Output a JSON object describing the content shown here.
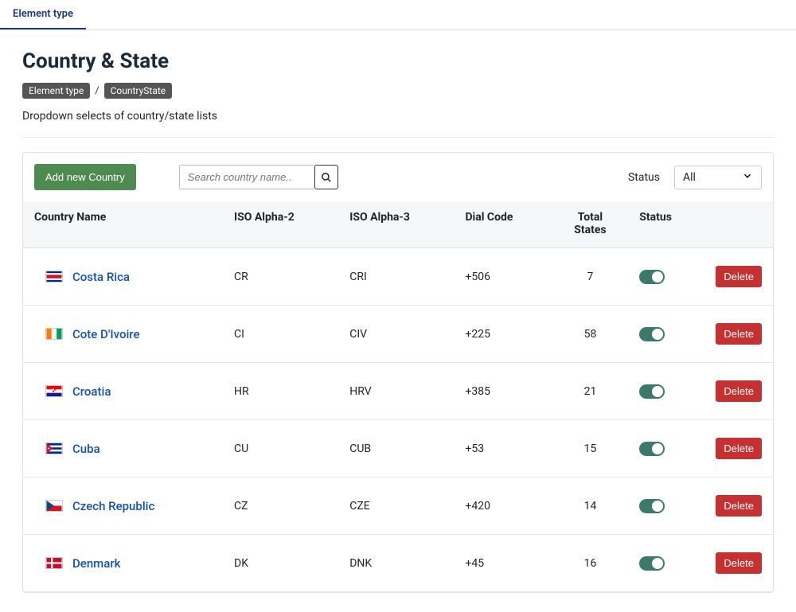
{
  "tabs": {
    "active": "Element type"
  },
  "page": {
    "title": "Country & State",
    "description": "Dropdown selects of country/state lists"
  },
  "breadcrumb": {
    "root": "Element type",
    "current": "CountryState"
  },
  "toolbar": {
    "add_button": "Add new Country",
    "search_placeholder": "Search country name..",
    "status_label": "Status",
    "status_selected": "All"
  },
  "table": {
    "columns": {
      "name": "Country Name",
      "iso2": "ISO Alpha-2",
      "iso3": "ISO Alpha-3",
      "dial": "Dial Code",
      "total_states": "Total States",
      "status": "Status"
    },
    "delete_label": "Delete",
    "rows": [
      {
        "name": "Costa Rica",
        "iso2": "CR",
        "iso3": "CRI",
        "dial": "+506",
        "total_states": "7",
        "status_on": true,
        "flag": "cr"
      },
      {
        "name": "Cote D'Ivoire",
        "iso2": "CI",
        "iso3": "CIV",
        "dial": "+225",
        "total_states": "58",
        "status_on": true,
        "flag": "ci"
      },
      {
        "name": "Croatia",
        "iso2": "HR",
        "iso3": "HRV",
        "dial": "+385",
        "total_states": "21",
        "status_on": true,
        "flag": "hr"
      },
      {
        "name": "Cuba",
        "iso2": "CU",
        "iso3": "CUB",
        "dial": "+53",
        "total_states": "15",
        "status_on": true,
        "flag": "cu"
      },
      {
        "name": "Czech Republic",
        "iso2": "CZ",
        "iso3": "CZE",
        "dial": "+420",
        "total_states": "14",
        "status_on": true,
        "flag": "cz"
      },
      {
        "name": "Denmark",
        "iso2": "DK",
        "iso3": "DNK",
        "dial": "+45",
        "total_states": "16",
        "status_on": true,
        "flag": "dk"
      }
    ],
    "column_widths": {
      "name": "26%",
      "iso2": "14%",
      "iso3": "16%",
      "dial": "16%",
      "total_states": "10%",
      "status": "10%",
      "actions": "8%"
    }
  },
  "styling": {
    "accent_link_color": "#1451b4",
    "add_button_bg": "#4f8a51",
    "delete_button_bg": "#c53030",
    "toggle_on_bg": "#3b7a6a",
    "header_bg": "#f6f7f9",
    "border_color": "#e0e0e0",
    "tab_active_color": "#1a3a7a",
    "breadcrumb_pill_bg": "#555555",
    "title_color": "#1a2b3a",
    "background_color": "#ffffff",
    "font_family": "system-ui"
  },
  "flag_svgs": {
    "cr": "<rect width='22' height='15' fill='#002b7f'/><rect y='2.5' width='22' height='10' fill='#fff'/><rect y='5' width='22' height='5' fill='#ce1126'/>",
    "ci": "<rect width='7.33' height='15' x='0'  fill='#f77f00'/><rect width='7.33' height='15' x='7.33' fill='#fff'/><rect width='7.34' height='15' x='14.66' fill='#009e60'/>",
    "hr": "<rect width='22' height='5' y='0' fill='#ff0000'/><rect width='22' height='5' y='5' fill='#fff'/><rect width='22' height='5' y='10' fill='#171796'/><rect x='9' y='4' width='4' height='5' fill='#ff0000'/><rect x='9' y='4' width='2' height='2.5' fill='#fff'/><rect x='11' y='6.5' width='2' height='2.5' fill='#fff'/>",
    "cu": "<rect width='22' height='15' fill='#002a8f'/><rect y='3' width='22' height='3' fill='#fff'/><rect y='9' width='22' height='3' fill='#fff'/><polygon points='0,0 9,7.5 0,15' fill='#cf142b'/><circle cx='3' cy='7.5' r='1.2' fill='#fff'/>",
    "cz": "<rect width='22' height='7.5' y='0' fill='#fff'/><rect width='22' height='7.5' y='7.5' fill='#d7141a'/><polygon points='0,0 11,7.5 0,15' fill='#11457e'/>",
    "dk": "<rect width='22' height='15' fill='#c8102e'/><rect x='6.5' width='2.5' height='15' fill='#fff'/><rect y='6.25' width='22' height='2.5' fill='#fff'/>"
  }
}
